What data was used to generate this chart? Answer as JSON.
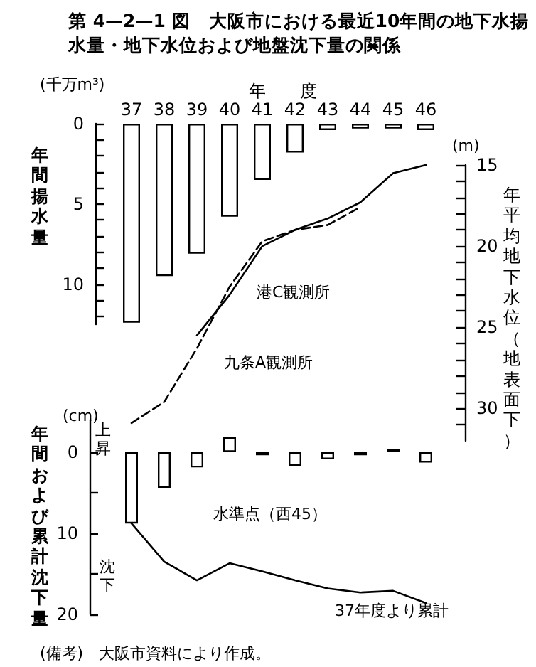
{
  "chart_data": [
    {
      "type": "bar",
      "title": "第 4—2—1 図　大阪市における最近10年間の地下水揚水量・地下水位および地盤沈下量の関係",
      "xlabel": "年　　度",
      "ylabel": "年間揚水量",
      "y2label": "年平均地下水位（地表面下）",
      "annotations": [
        "(千万m³)",
        "(m)"
      ],
      "categories": [
        "37",
        "38",
        "39",
        "40",
        "41",
        "42",
        "43",
        "44",
        "45",
        "46"
      ],
      "series": [
        {
          "color": "#ffffff",
          "values": [
            12.4,
            9.5,
            8.1,
            5.8,
            3.5,
            1.8,
            0.4,
            0.3,
            0.3,
            0.4
          ]
        },
        {
          "name": "港C観測所",
          "type": "line",
          "axis": "y2",
          "color": "#000000",
          "line_style": "solid",
          "values": [
            null,
            null,
            25.5,
            23.0,
            20.0,
            19.0,
            18.3,
            17.3,
            15.5,
            15.0
          ]
        },
        {
          "name": "九条A観測所",
          "type": "line",
          "axis": "y2",
          "color": "#000000",
          "line_style": "dashed",
          "values": [
            30.9,
            29.6,
            26.3,
            22.5,
            19.7,
            19.0,
            18.7,
            17.6,
            null,
            null
          ]
        }
      ],
      "ylim": [
        12.5,
        0
      ],
      "yticks": [
        0,
        {
          "value": 1,
          "label": null
        },
        {
          "value": 2,
          "label": null
        },
        {
          "value": 3,
          "label": null
        },
        {
          "value": 4,
          "label": null
        },
        5,
        {
          "value": 6,
          "label": null
        },
        {
          "value": 7,
          "label": null
        },
        {
          "value": 8,
          "label": null
        },
        {
          "value": 9,
          "label": null
        },
        10,
        {
          "value": 11,
          "label": null
        },
        {
          "value": 12,
          "label": null
        }
      ],
      "y2lim": [
        32,
        15
      ],
      "y2ticks": [
        15,
        {
          "value": 16,
          "label": null
        },
        {
          "value": 17,
          "label": null
        },
        {
          "value": 18,
          "label": null
        },
        {
          "value": 19,
          "label": null
        },
        20,
        {
          "value": 21,
          "label": null
        },
        {
          "value": 22,
          "label": null
        },
        {
          "value": 23,
          "label": null
        },
        {
          "value": 24,
          "label": null
        },
        25,
        {
          "value": 26,
          "label": null
        },
        {
          "value": 27,
          "label": null
        },
        {
          "value": 28,
          "label": null
        },
        {
          "value": 29,
          "label": null
        },
        30,
        {
          "value": 31,
          "label": null
        }
      ],
      "marker": "none"
    },
    {
      "type": "bar",
      "ylabel": "年間および累計沈下量",
      "annotations": [
        "(cm)",
        "上昇",
        "沈下",
        "水準点（西45）",
        "(備考)　大阪市資料により作成。"
      ],
      "categories": [
        "37",
        "38",
        "39",
        "40",
        "41",
        "42",
        "43",
        "44",
        "45",
        "46"
      ],
      "series": [
        {
          "color": "#ffffff",
          "values": [
            8.8,
            4.4,
            1.9,
            -1.8,
            0.4,
            1.7,
            0.9,
            0.4,
            -0.4,
            1.3
          ]
        },
        {
          "name": "37年度より累計",
          "type": "line",
          "color": "#000000",
          "line_style": "solid",
          "values": [
            8.8,
            13.5,
            15.8,
            13.7,
            14.7,
            15.8,
            16.8,
            17.3,
            17.1,
            18.6
          ]
        }
      ],
      "ylim": [
        20,
        -4
      ],
      "yticks": [
        0,
        {
          "value": 5,
          "label": null
        },
        10,
        {
          "value": 15,
          "label": null
        },
        20
      ],
      "marker": "none",
      "tick_labels": "y"
    }
  ]
}
